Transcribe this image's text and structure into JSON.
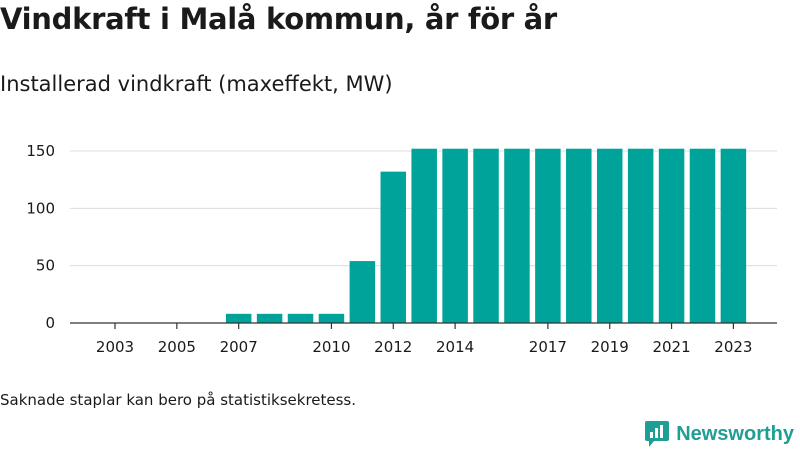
{
  "title": "Vindkraft i Malå kommun, år för år",
  "subtitle": "Installerad vindkraft (maxeffekt, MW)",
  "footnote": "Saknade staplar kan bero på statistiksekretess.",
  "brand": {
    "name": "Newsworthy",
    "icon": "newsworthy-logo-icon",
    "color": "#1f9e94"
  },
  "chart_data": {
    "type": "bar",
    "color": "#00a39a",
    "x": [
      2003,
      2004,
      2005,
      2006,
      2007,
      2008,
      2009,
      2010,
      2011,
      2012,
      2013,
      2014,
      2015,
      2016,
      2017,
      2018,
      2019,
      2020,
      2021,
      2022,
      2023
    ],
    "values": [
      0,
      0,
      0,
      0,
      8,
      8,
      8,
      8,
      54,
      132,
      152,
      152,
      152,
      152,
      152,
      152,
      152,
      152,
      152,
      152,
      152
    ],
    "x_tick_labels": [
      "2003",
      "2005",
      "2007",
      "2010",
      "2012",
      "2014",
      "2017",
      "2019",
      "2021",
      "2023"
    ],
    "y_ticks": [
      0,
      50,
      100,
      150
    ],
    "ylim": [
      0,
      160
    ],
    "grid": true,
    "title": "",
    "xlabel": "",
    "ylabel": ""
  }
}
